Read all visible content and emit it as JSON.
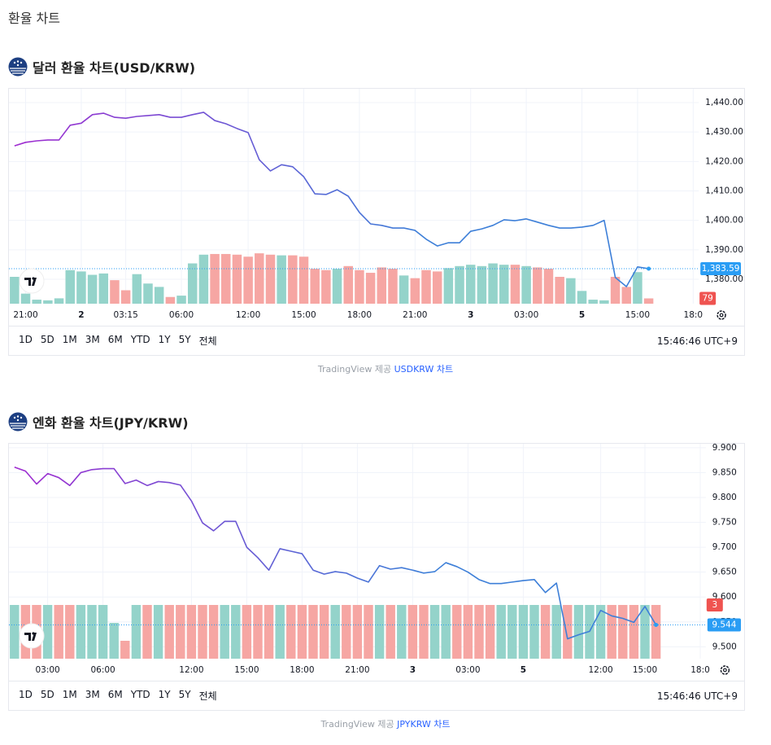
{
  "page_title": "환율 차트",
  "chart_data": [
    {
      "type": "line",
      "title": "달러 환율 차트(USD/KRW)",
      "categories": [
        null,
        "21:00",
        null,
        null,
        null,
        null,
        "2",
        null,
        null,
        null,
        "03:15",
        null,
        null,
        null,
        null,
        "06:00",
        null,
        null,
        null,
        null,
        null,
        "12:00",
        null,
        null,
        null,
        null,
        "15:00",
        null,
        null,
        null,
        null,
        "18:00",
        null,
        null,
        null,
        null,
        "21:00",
        null,
        null,
        null,
        null,
        "3",
        null,
        null,
        null,
        null,
        "03:00",
        null,
        null,
        null,
        null,
        "5",
        null,
        null,
        null,
        null,
        "15:00",
        null,
        null,
        null,
        null,
        "18:0"
      ],
      "values": [
        1425.3,
        1426.5,
        1427,
        1427.3,
        1427.3,
        1432.3,
        1433,
        1435.9,
        1436.4,
        1435,
        1434.7,
        1435.3,
        1435.6,
        1435.9,
        1435,
        1435,
        1435.9,
        1436.7,
        1433.9,
        1432.8,
        1431.2,
        1429.8,
        1420.6,
        1416.8,
        1418.9,
        1418.2,
        1414.8,
        1409,
        1408.8,
        1410.4,
        1408.2,
        1402.7,
        1398.8,
        1398.3,
        1397.4,
        1397.4,
        1396.6,
        1393.6,
        1391.3,
        1392.4,
        1392.4,
        1396.3,
        1397.1,
        1398.3,
        1400.2,
        1399.9,
        1400.5,
        1399.4,
        1398.3,
        1397.4,
        1397.4,
        1397.7,
        1398.3,
        1400,
        1380.6,
        1377.5,
        1384.2,
        1383.59,
        null,
        null,
        null,
        null
      ],
      "value_labels": [
        null,
        null,
        null,
        null,
        null,
        null,
        null,
        null,
        null,
        null,
        null,
        null,
        null,
        null,
        null,
        null,
        null,
        null,
        null,
        null,
        null,
        null,
        null,
        null,
        null,
        null,
        null,
        null,
        null,
        null,
        null,
        null,
        null,
        null,
        null,
        null,
        null,
        null,
        null,
        null,
        null,
        null,
        null,
        null,
        null,
        null,
        null,
        null,
        null,
        null,
        null,
        null,
        null,
        null,
        null,
        null,
        null,
        "1,383.59",
        null,
        null,
        null,
        null
      ],
      "volumes": [
        400,
        150,
        60,
        50,
        80,
        500,
        480,
        430,
        450,
        350,
        200,
        440,
        300,
        250,
        100,
        120,
        600,
        730,
        740,
        740,
        730,
        700,
        750,
        730,
        720,
        720,
        700,
        520,
        500,
        520,
        560,
        500,
        460,
        540,
        520,
        420,
        380,
        500,
        480,
        530,
        560,
        580,
        560,
        600,
        580,
        580,
        560,
        540,
        520,
        400,
        380,
        190,
        60,
        50,
        400,
        250,
        470,
        79,
        null,
        null,
        null,
        null
      ],
      "volume_ylim": [
        0,
        3200
      ],
      "ylim": [
        1371.7,
        1444.7
      ],
      "yticks": [
        {
          "value": 1380,
          "label": "1,380.00"
        },
        {
          "value": 1390,
          "label": "1,390.00"
        },
        {
          "value": 1400,
          "label": "1,400.00"
        },
        {
          "value": 1410,
          "label": "1,410.00"
        },
        {
          "value": 1420,
          "label": "1,420.00"
        },
        {
          "value": 1430,
          "label": "1,430.00"
        },
        {
          "value": 1440,
          "label": "1,440.00"
        }
      ],
      "grid": true,
      "line_colors": [
        "#a12bd0",
        "#3d7fd8"
      ],
      "up_color": "#94d3ca",
      "down_color": "#f6a6a3",
      "last_color": "#2a9df4",
      "up_label_color": "#26a69a",
      "down_label_color": "#ef5350",
      "range_buttons": [
        "1D",
        "5D",
        "1M",
        "3M",
        "6M",
        "YTD",
        "1Y",
        "5Y",
        "전체"
      ],
      "clock": "15:46:46 UTC+9",
      "caption_prefix": "TradingView 제공",
      "caption_link": "USDKRW 차트"
    },
    {
      "type": "line",
      "title": "엔화 환율 차트(JPY/KRW)",
      "categories": [
        null,
        null,
        null,
        "03:00",
        null,
        null,
        null,
        null,
        "06:00",
        null,
        null,
        null,
        null,
        null,
        null,
        null,
        "12:00",
        null,
        null,
        null,
        null,
        "15:00",
        null,
        null,
        null,
        null,
        "18:00",
        null,
        null,
        null,
        null,
        "21:00",
        null,
        null,
        null,
        null,
        "3",
        null,
        null,
        null,
        null,
        "03:00",
        null,
        null,
        null,
        null,
        "5",
        null,
        null,
        null,
        null,
        null,
        null,
        "12:00",
        null,
        null,
        null,
        "15:00",
        null,
        null,
        null,
        null,
        "18:0"
      ],
      "values": [
        9.861,
        9.853,
        9.827,
        9.848,
        9.84,
        9.824,
        9.85,
        9.856,
        9.858,
        9.858,
        9.828,
        9.835,
        9.824,
        9.832,
        9.83,
        9.825,
        9.793,
        9.749,
        9.733,
        9.752,
        9.752,
        9.7,
        9.679,
        9.654,
        9.697,
        9.692,
        9.687,
        9.654,
        9.646,
        9.651,
        9.648,
        9.638,
        9.63,
        9.663,
        9.656,
        9.659,
        9.654,
        9.648,
        9.651,
        9.669,
        9.661,
        9.65,
        9.635,
        9.627,
        9.627,
        9.63,
        9.633,
        9.635,
        9.609,
        9.628,
        9.516,
        9.524,
        9.531,
        9.573,
        9.562,
        9.557,
        9.549,
        9.581,
        9.544,
        null,
        null,
        null,
        null
      ],
      "volumes": [
        3,
        3,
        3,
        3,
        3,
        3,
        3,
        3,
        3,
        2,
        1,
        3,
        3,
        3,
        3,
        3,
        3,
        3,
        3,
        3,
        3,
        3,
        3,
        3,
        3,
        3,
        3,
        3,
        3,
        3,
        3,
        3,
        3,
        3,
        3,
        3,
        3,
        3,
        3,
        3,
        3,
        3,
        3,
        3,
        3,
        3,
        3,
        3,
        3,
        3,
        3,
        3,
        3,
        3,
        3,
        3,
        3,
        3,
        3,
        null,
        null,
        null,
        null
      ],
      "volume_ylim": [
        0,
        12
      ],
      "ylim": [
        9.476,
        9.908
      ],
      "yticks": [
        {
          "value": 9.5,
          "label": "9.500"
        },
        {
          "value": 9.55,
          "label": "9.550"
        },
        {
          "value": 9.6,
          "label": "9.600"
        },
        {
          "value": 9.65,
          "label": "9.650"
        },
        {
          "value": 9.7,
          "label": "9.700"
        },
        {
          "value": 9.75,
          "label": "9.750"
        },
        {
          "value": 9.8,
          "label": "9.800"
        },
        {
          "value": 9.85,
          "label": "9.850"
        },
        {
          "value": 9.9,
          "label": "9.900"
        }
      ],
      "grid": true,
      "line_colors": [
        "#a12bd0",
        "#3d7fd8"
      ],
      "up_color": "#94d3ca",
      "down_color": "#f6a6a3",
      "last_color": "#2a9df4",
      "up_label_color": "#26a69a",
      "down_label_color": "#ef5350",
      "range_buttons": [
        "1D",
        "5D",
        "1M",
        "3M",
        "6M",
        "YTD",
        "1Y",
        "5Y",
        "전체"
      ],
      "clock": "15:46:46 UTC+9",
      "caption_prefix": "TradingView 제공",
      "caption_link": "JPYKRW 차트"
    }
  ]
}
